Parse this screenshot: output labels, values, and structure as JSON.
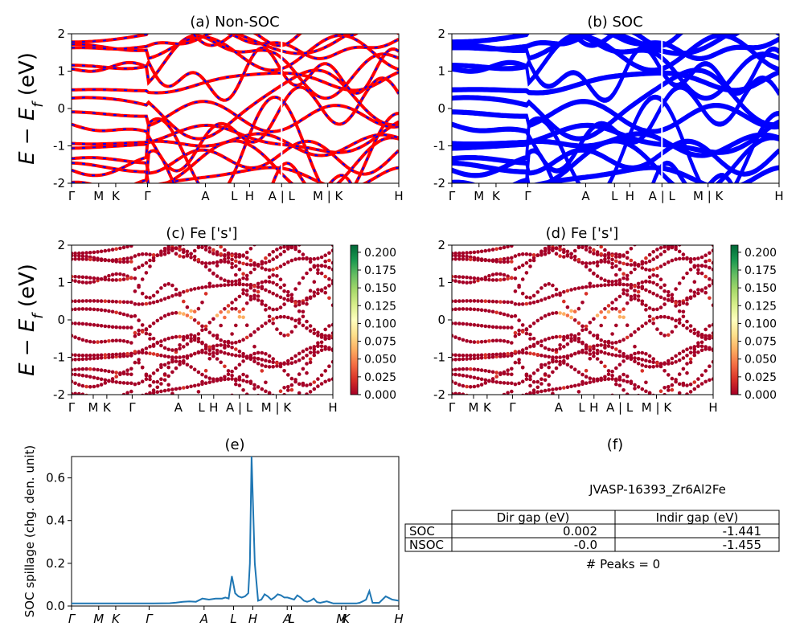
{
  "colors": {
    "nonsoc_line": "#ff0000",
    "nonsoc_dash": "#0000ff",
    "soc_line": "#0000ff",
    "spillage_line": "#1f77b4",
    "proj_low": "#a50026",
    "proj_mid": "#fee08b",
    "proj_high": "#006837"
  },
  "band_ylabel": "E − E_f (eV)",
  "kpath_labels": [
    "Γ",
    "M",
    "K",
    "Γ",
    "A",
    "L",
    "H",
    "A | L",
    "M | K",
    "H"
  ],
  "spillage_kpath_labels": [
    "Γ",
    "M",
    "K",
    "Γ",
    "A",
    "L",
    "H",
    "A",
    "L",
    "M",
    "K",
    "H"
  ],
  "chart_data": [
    {
      "id": "a",
      "type": "line",
      "title": "(a) Non-SOC",
      "ylabel": "E − E_f (eV)",
      "ylim": [
        -2,
        2
      ],
      "yticks": [
        -2,
        -1,
        0,
        1,
        2
      ],
      "xticks": [
        "Γ",
        "M",
        "K",
        "Γ",
        "A",
        "L",
        "H",
        "A | L",
        "M | K",
        "H"
      ],
      "series_style": "red bands overlaid with blue dashes"
    },
    {
      "id": "b",
      "type": "line",
      "title": "(b) SOC",
      "ylim": [
        -2,
        2
      ],
      "yticks": [
        -2,
        -1,
        0,
        1,
        2
      ],
      "xticks": [
        "Γ",
        "M",
        "K",
        "Γ",
        "A",
        "L",
        "H",
        "A | L",
        "M | K",
        "H"
      ],
      "series_style": "blue bands"
    },
    {
      "id": "c",
      "type": "scatter",
      "title": "(c)  Fe ['s']",
      "ylabel": "E − E_f (eV)",
      "ylim": [
        -2,
        2
      ],
      "yticks": [
        -2,
        -1,
        0,
        1,
        2
      ],
      "xticks": [
        "Γ",
        "M",
        "K",
        "Γ",
        "A",
        "L",
        "H",
        "A | L",
        "M | K",
        "H"
      ],
      "colorbar": {
        "min": 0.0,
        "max": 0.21,
        "ticks": [
          "0.000",
          "0.025",
          "0.050",
          "0.075",
          "0.100",
          "0.125",
          "0.150",
          "0.175",
          "0.200"
        ],
        "colormap": "RdYlGn"
      }
    },
    {
      "id": "d",
      "type": "scatter",
      "title": "(d) Fe ['s']",
      "ylim": [
        -2,
        2
      ],
      "yticks": [
        -2,
        -1,
        0,
        1,
        2
      ],
      "xticks": [
        "Γ",
        "M",
        "K",
        "Γ",
        "A",
        "L",
        "H",
        "A | L",
        "M | K",
        "H"
      ],
      "colorbar": {
        "min": 0.0,
        "max": 0.21,
        "ticks": [
          "0.000",
          "0.025",
          "0.050",
          "0.075",
          "0.100",
          "0.125",
          "0.150",
          "0.175",
          "0.200"
        ],
        "colormap": "RdYlGn"
      }
    },
    {
      "id": "e",
      "type": "line",
      "title": "(e)",
      "ylabel": "SOC spillage (chg. den. unit)",
      "ylim": [
        0,
        0.7
      ],
      "yticks": [
        "0.0",
        "0.2",
        "0.4",
        "0.6"
      ],
      "xticks": [
        "Γ",
        "M",
        "K",
        "Γ",
        "A",
        "L",
        "H",
        "A",
        "L",
        "M",
        "K",
        "H"
      ],
      "x": [
        0,
        0.05,
        0.1,
        0.15,
        0.2,
        0.25,
        0.3,
        0.32,
        0.34,
        0.36,
        0.38,
        0.4,
        0.42,
        0.44,
        0.46,
        0.47,
        0.48,
        0.49,
        0.5,
        0.51,
        0.52,
        0.53,
        0.54,
        0.545,
        0.55,
        0.56,
        0.57,
        0.58,
        0.59,
        0.6,
        0.61,
        0.62,
        0.63,
        0.64,
        0.65,
        0.66,
        0.67,
        0.68,
        0.69,
        0.7,
        0.71,
        0.72,
        0.73,
        0.74,
        0.75,
        0.76,
        0.78,
        0.8,
        0.82,
        0.84,
        0.86,
        0.87,
        0.88,
        0.89,
        0.9,
        0.91,
        0.92,
        0.94,
        0.96,
        0.98,
        1.0
      ],
      "y": [
        0.012,
        0.012,
        0.012,
        0.012,
        0.012,
        0.012,
        0.013,
        0.016,
        0.02,
        0.022,
        0.02,
        0.035,
        0.03,
        0.035,
        0.035,
        0.04,
        0.035,
        0.14,
        0.06,
        0.045,
        0.04,
        0.045,
        0.06,
        0.2,
        0.7,
        0.2,
        0.025,
        0.03,
        0.055,
        0.045,
        0.03,
        0.04,
        0.055,
        0.05,
        0.04,
        0.04,
        0.035,
        0.03,
        0.05,
        0.04,
        0.025,
        0.02,
        0.025,
        0.035,
        0.018,
        0.015,
        0.022,
        0.012,
        0.012,
        0.012,
        0.012,
        0.012,
        0.015,
        0.022,
        0.03,
        0.07,
        0.015,
        0.015,
        0.045,
        0.03,
        0.025
      ]
    }
  ],
  "panel_f": {
    "title": "(f)",
    "material": "JVASP-16393_Zr6Al2Fe",
    "table": {
      "headers": [
        "",
        "Dir gap (eV)",
        "Indir gap (eV)"
      ],
      "rows": [
        {
          "label": "SOC",
          "dir": "0.002",
          "indir": "-1.441"
        },
        {
          "label": "NSOC",
          "dir": "-0.0",
          "indir": "-1.455"
        }
      ]
    },
    "peaks": "# Peaks = 0"
  }
}
